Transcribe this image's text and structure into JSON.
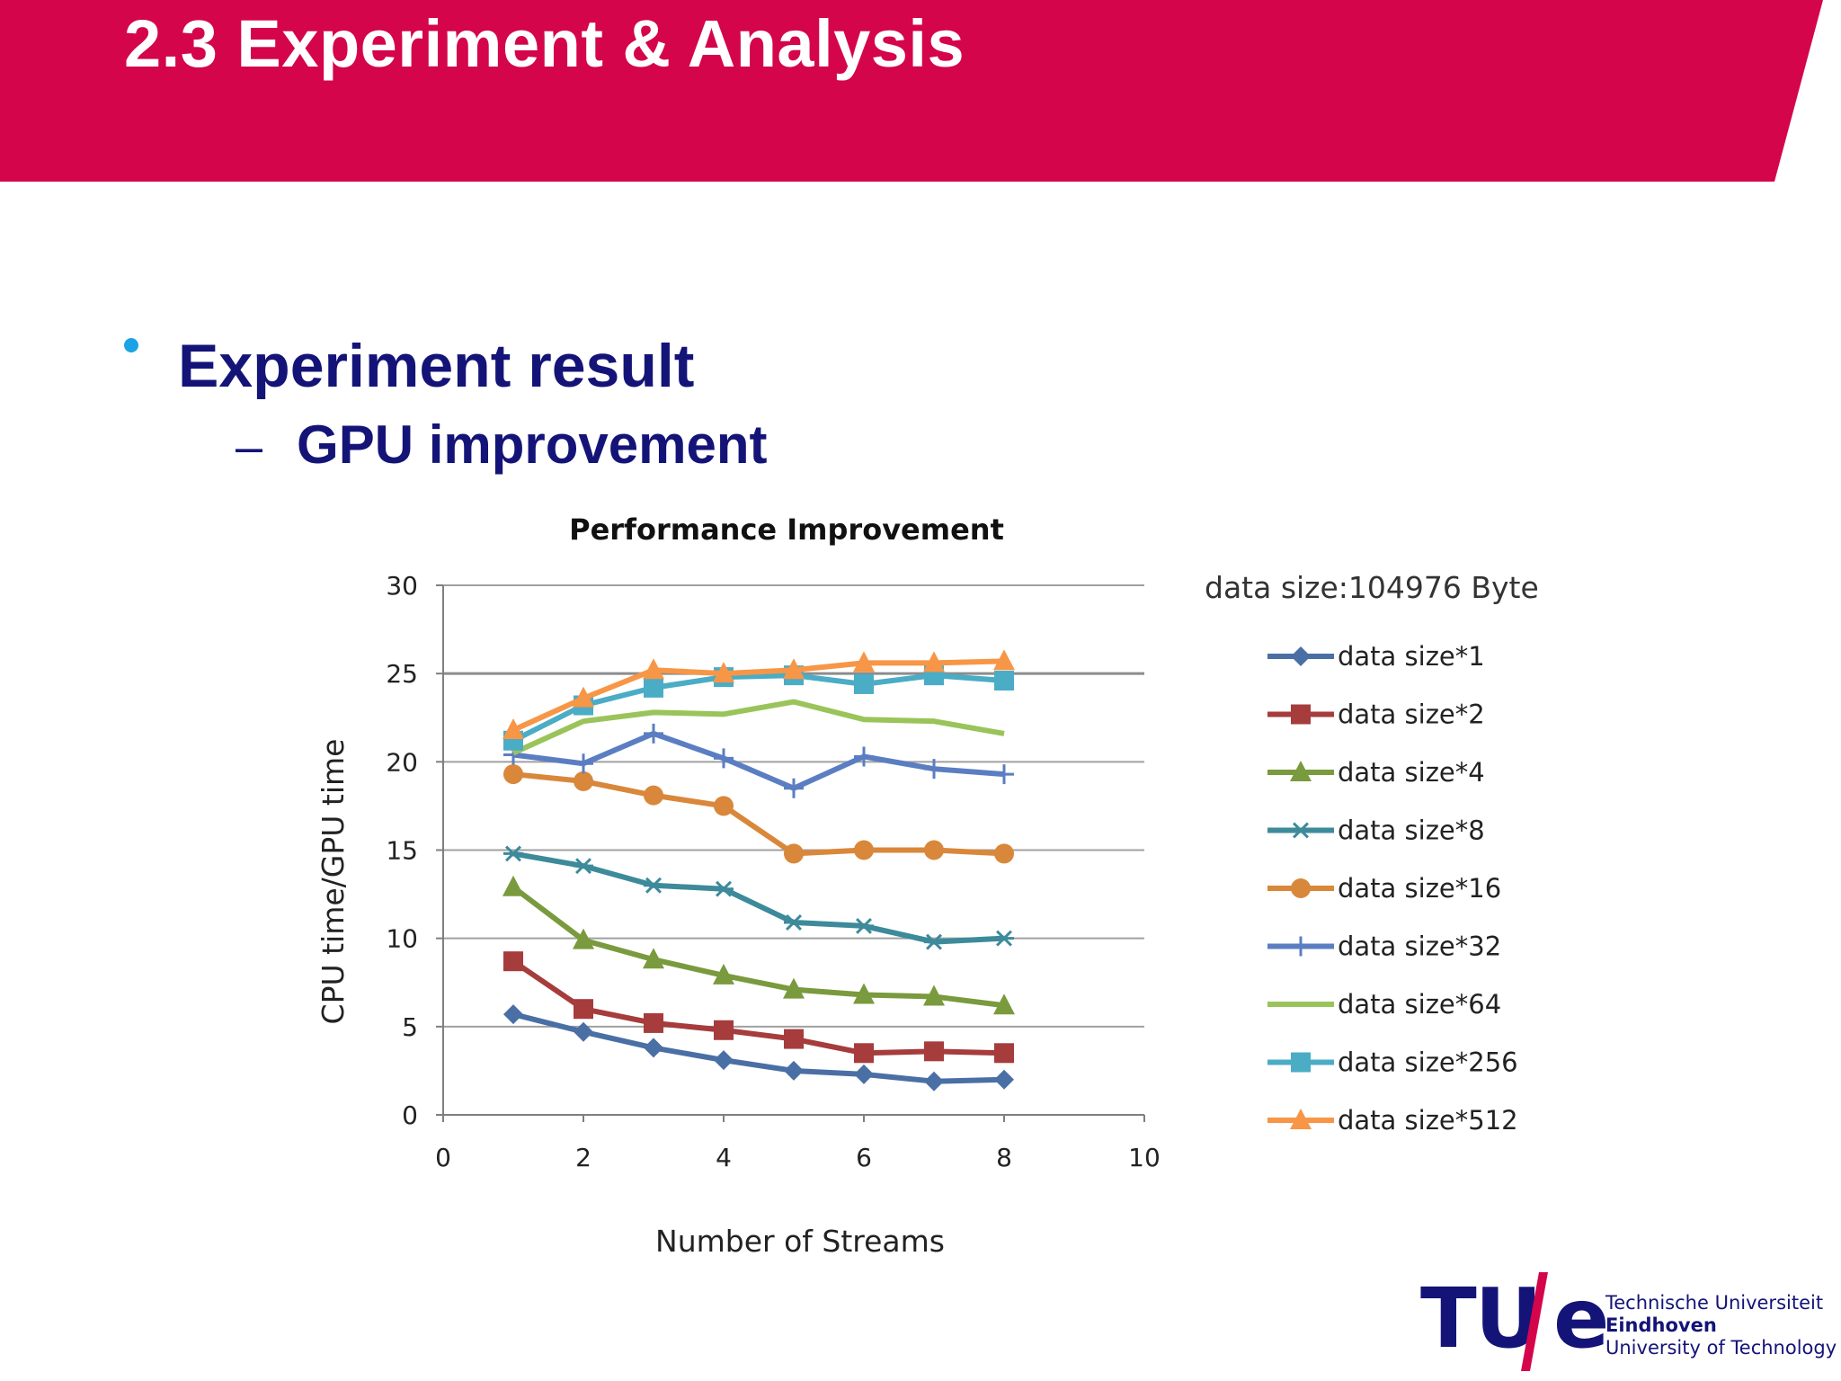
{
  "slide": {
    "title": "2.3 Experiment & Analysis",
    "bullet": "Experiment result",
    "sub_bullet": "GPU improvement",
    "colors": {
      "banner": "#d4054a",
      "text": "#141478",
      "bullet": "#1ba3e6"
    }
  },
  "logo": {
    "mark": "TU",
    "mark_e": "e",
    "lines": [
      "Technische Universiteit",
      "Eindhoven",
      "University of Technology"
    ],
    "slash_color": "#d4054a"
  },
  "chart_data": {
    "type": "line",
    "title": "Performance Improvement",
    "xlabel": "Number of Streams",
    "ylabel": "CPU time/GPU time",
    "annotation": "data size:104976 Byte",
    "xlim": [
      0,
      10
    ],
    "ylim": [
      0,
      30
    ],
    "xticks": [
      0,
      2,
      4,
      6,
      8,
      10
    ],
    "yticks": [
      0,
      5,
      10,
      15,
      20,
      25,
      30
    ],
    "grid": true,
    "legend_position": "right",
    "x": [
      1,
      2,
      3,
      4,
      5,
      6,
      7,
      8
    ],
    "series": [
      {
        "name": "data size*1",
        "color": "#4a6fa5",
        "marker": "diamond",
        "values": [
          5.7,
          4.7,
          3.8,
          3.1,
          2.5,
          2.3,
          1.9,
          2.0
        ]
      },
      {
        "name": "data size*2",
        "color": "#a63c3c",
        "marker": "square",
        "values": [
          8.7,
          6.0,
          5.2,
          4.8,
          4.3,
          3.5,
          3.6,
          3.5
        ]
      },
      {
        "name": "data size*4",
        "color": "#7a9a3e",
        "marker": "triangle",
        "values": [
          12.9,
          9.9,
          8.8,
          7.9,
          7.1,
          6.8,
          6.7,
          6.2
        ]
      },
      {
        "name": "data size*8",
        "color": "#3d8a9a",
        "marker": "star",
        "values": [
          14.8,
          14.1,
          13.0,
          12.8,
          10.9,
          10.7,
          9.8,
          10.0
        ]
      },
      {
        "name": "data size*16",
        "color": "#d9873a",
        "marker": "circle",
        "values": [
          19.3,
          18.9,
          18.1,
          17.5,
          14.8,
          15.0,
          15.0,
          14.8
        ]
      },
      {
        "name": "data size*32",
        "color": "#5b7ec2",
        "marker": "plus",
        "values": [
          20.4,
          19.9,
          21.6,
          20.2,
          18.5,
          20.3,
          19.6,
          19.3
        ]
      },
      {
        "name": "data size*64",
        "color": "#9ac45a",
        "marker": "none",
        "values": [
          20.5,
          22.3,
          22.8,
          22.7,
          23.4,
          22.4,
          22.3,
          21.6
        ]
      },
      {
        "name": "data size*256",
        "color": "#4bacc6",
        "marker": "square",
        "values": [
          21.2,
          23.2,
          24.2,
          24.8,
          24.9,
          24.4,
          24.9,
          24.6
        ]
      },
      {
        "name": "data size*512",
        "color": "#f79646",
        "marker": "triangle",
        "values": [
          21.8,
          23.6,
          25.2,
          25.0,
          25.2,
          25.6,
          25.6,
          25.7
        ]
      }
    ]
  }
}
